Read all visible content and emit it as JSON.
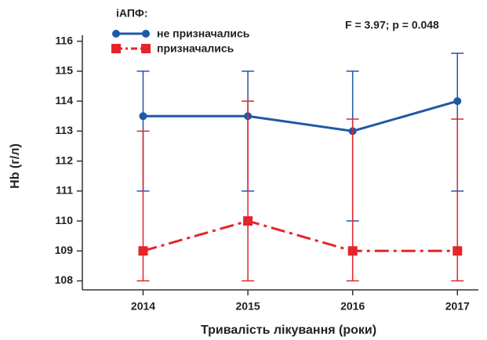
{
  "chart_data": {
    "type": "errorbar-line",
    "x_label": "Тривалість лікування (роки)",
    "y_label": "Hb (г/л)",
    "annotation": "F = 3.97; p = 0.048",
    "legend_title": "іАПФ:",
    "x": [
      2014,
      2015,
      2016,
      2017
    ],
    "xlim": [
      2013.42,
      2017.2
    ],
    "xticks": [
      2014,
      2015,
      2016,
      2017
    ],
    "ylim": [
      107.7,
      116.2
    ],
    "yticks": [
      108,
      109,
      110,
      111,
      112,
      113,
      114,
      115,
      116
    ],
    "series": [
      {
        "name": "не призначались",
        "color": "#1f58a6",
        "line_style": "solid",
        "marker": "circle",
        "values": [
          113.5,
          113.5,
          113,
          114
        ],
        "lower": [
          111,
          111,
          110,
          111
        ],
        "upper": [
          115,
          115,
          115,
          115.6
        ]
      },
      {
        "name": "призначались",
        "color": "#e4252b",
        "line_style": "dashdot",
        "marker": "square",
        "values": [
          109,
          110,
          109,
          109
        ],
        "lower": [
          108,
          108,
          108,
          108
        ],
        "upper": [
          113,
          114,
          113.4,
          113.4
        ]
      }
    ]
  }
}
